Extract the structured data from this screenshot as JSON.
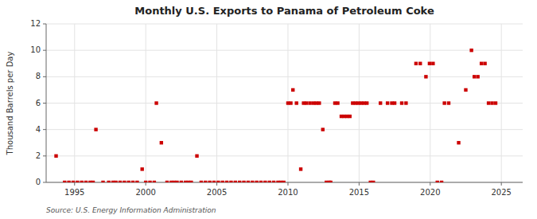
{
  "chart_data": {
    "type": "scatter",
    "title": "Monthly U.S. Exports to Panama of Petroleum Coke",
    "ylabel": "Thousand Barrels per Day",
    "source": "Source: U.S. Energy Information Administration",
    "xlim": [
      1993.0,
      2026.5
    ],
    "ylim": [
      0,
      12
    ],
    "yticks": [
      0,
      2,
      4,
      6,
      8,
      10,
      12
    ],
    "xticks": [
      1995,
      2000,
      2005,
      2010,
      2015,
      2020,
      2025
    ],
    "grid": true,
    "color": "#cc0000",
    "marker": "square",
    "x": [
      1993.7,
      1996.5,
      1994.3,
      1994.6,
      1994.9,
      1995.2,
      1995.5,
      1995.8,
      1996.1,
      1996.3,
      1997.0,
      1997.4,
      1997.7,
      1997.9,
      1998.2,
      1998.5,
      1998.8,
      1999.1,
      1999.4,
      1999.75,
      2000.0,
      2000.3,
      2000.6,
      2001.1,
      2001.5,
      2001.8,
      2002.0,
      2002.2,
      2002.5,
      2002.8,
      2003.0,
      2003.2,
      2003.6,
      2003.9,
      2004.2,
      2004.5,
      2004.8,
      2000.75,
      2005.1,
      2005.4,
      2005.7,
      2006.0,
      2006.3,
      2006.6,
      2006.9,
      2007.2,
      2007.5,
      2007.8,
      2008.1,
      2008.4,
      2008.7,
      2009.0,
      2009.3,
      2009.5,
      2009.7,
      2010.0,
      2010.2,
      2010.35,
      2010.6,
      2010.9,
      2011.1,
      2011.3,
      2011.55,
      2011.8,
      2012.0,
      2012.2,
      2012.45,
      2012.7,
      2012.9,
      2013.0,
      2013.3,
      2013.5,
      2013.75,
      2013.95,
      2014.15,
      2014.35,
      2014.55,
      2014.75,
      2014.95,
      2015.15,
      2015.35,
      2015.55,
      2015.8,
      2016.0,
      2016.5,
      2017.0,
      2017.3,
      2017.5,
      2018.0,
      2018.3,
      2019.0,
      2019.3,
      2019.7,
      2019.95,
      2020.2,
      2020.5,
      2021.0,
      2021.3,
      2022.0,
      2022.5,
      2022.9,
      2023.1,
      2023.35,
      2023.6,
      2023.85,
      2024.1,
      2024.35,
      2024.6,
      2020.8
    ],
    "values": [
      2,
      4,
      0,
      0,
      0,
      0,
      0,
      0,
      0,
      0,
      0,
      0,
      0,
      0,
      0,
      0,
      0,
      0,
      0,
      1,
      0,
      0,
      0,
      3,
      0,
      0,
      0,
      0,
      0,
      0,
      0,
      0,
      2,
      0,
      0,
      0,
      0,
      6,
      0,
      0,
      0,
      0,
      0,
      0,
      0,
      0,
      0,
      0,
      0,
      0,
      0,
      0,
      0,
      0,
      0,
      6,
      6,
      7,
      6,
      1,
      6,
      6,
      6,
      6,
      6,
      6,
      4,
      0,
      0,
      0,
      6,
      6,
      5,
      5,
      5,
      5,
      6,
      6,
      6,
      6,
      6,
      6,
      0,
      0,
      6,
      6,
      6,
      6,
      6,
      6,
      9,
      9,
      8,
      9,
      9,
      0,
      6,
      6,
      3,
      7,
      10,
      8,
      8,
      9,
      9,
      6,
      6,
      6,
      0
    ]
  }
}
